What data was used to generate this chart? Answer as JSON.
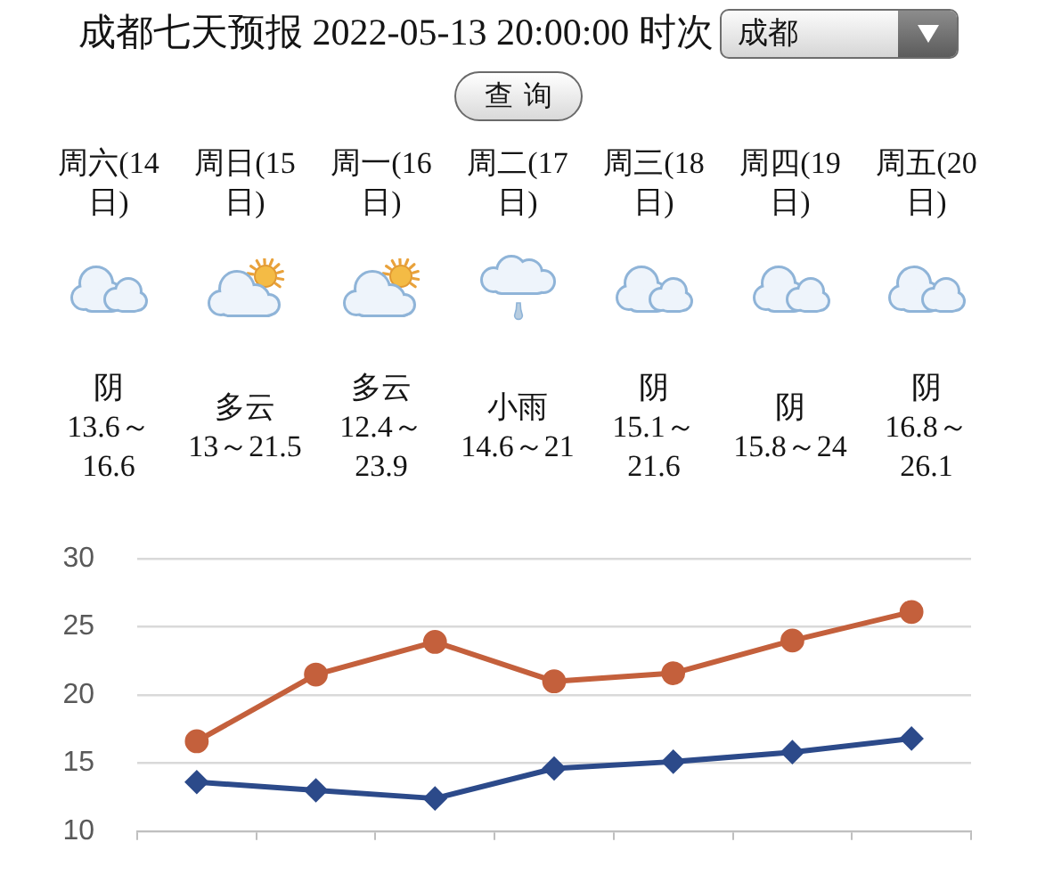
{
  "chart_data": [
    {
      "type": "other",
      "title": "成都七天预报 2022-05-13 20:00:00 时次",
      "annotations": [
        "成都",
        "查询",
        "周六(14日)",
        "阴",
        "13.6～16.6",
        "周日(15日)",
        "多云",
        "13～21.5",
        "周一(16日)",
        "多云",
        "12.4～23.9",
        "周二(17日)",
        "小雨",
        "14.6～21",
        "周三(18日)",
        "阴",
        "15.1～21.6",
        "周四(19日)",
        "阴",
        "15.8～24",
        "周五(20日)",
        "阴",
        "16.8～26.1"
      ]
    },
    {
      "type": "line",
      "categories": [
        null,
        null,
        null,
        null,
        null,
        null,
        null
      ],
      "series": [
        {
          "color": "#2c4a8a",
          "marker": "diamond",
          "values": [
            13.6,
            13,
            12.4,
            14.6,
            15.1,
            15.8,
            16.8
          ]
        },
        {
          "color": "#c4603c",
          "marker": "circle",
          "values": [
            16.6,
            21.5,
            23.9,
            21,
            21.6,
            24,
            26.1
          ]
        }
      ],
      "ylim": [
        10,
        30
      ],
      "yticks": [
        10,
        15,
        20,
        25,
        30
      ],
      "grid": "y",
      "tick_labels": "y",
      "line_style": "solid"
    }
  ]
}
